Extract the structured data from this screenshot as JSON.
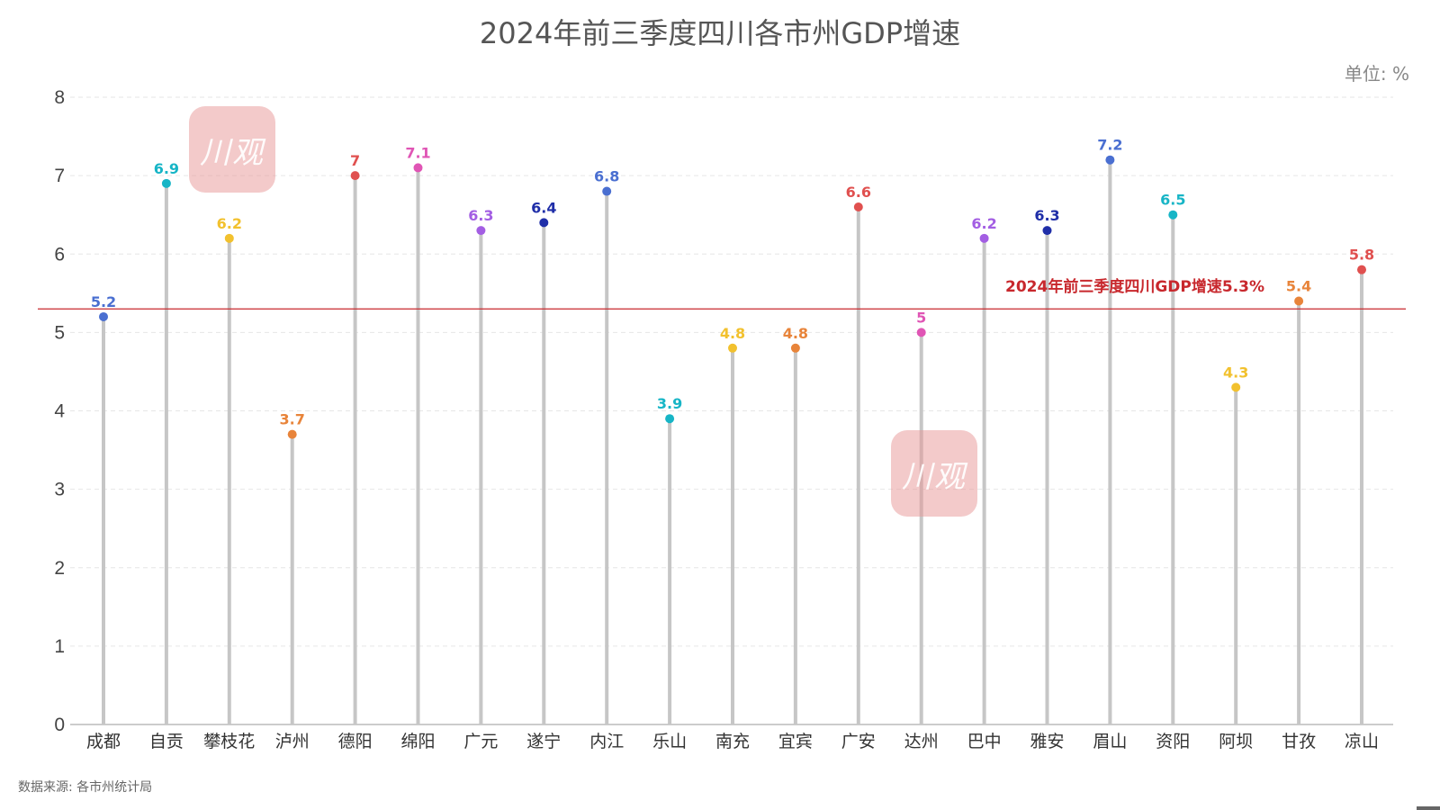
{
  "chart_data": {
    "type": "lollipop",
    "title": "2024年前三季度四川各市州GDP增速",
    "unit_label": "单位: %",
    "source": "数据来源: 各市州统计局",
    "ylim": [
      0,
      8
    ],
    "yticks": [
      "0",
      "1",
      "2",
      "3",
      "4",
      "5",
      "6",
      "7",
      "8"
    ],
    "categories": [
      "成都",
      "自贡",
      "攀枝花",
      "泸州",
      "德阳",
      "绵阳",
      "广元",
      "遂宁",
      "内江",
      "乐山",
      "南充",
      "宜宾",
      "广安",
      "达州",
      "巴中",
      "雅安",
      "眉山",
      "资阳",
      "阿坝",
      "甘孜",
      "凉山"
    ],
    "values": [
      5.2,
      6.9,
      6.2,
      3.7,
      7,
      7.1,
      6.3,
      6.4,
      6.8,
      3.9,
      4.8,
      4.8,
      6.6,
      5,
      6.2,
      6.3,
      7.2,
      6.5,
      4.3,
      5.4,
      5.8
    ],
    "value_labels": [
      "5.2",
      "6.9",
      "6.2",
      "3.7",
      "7",
      "7.1",
      "6.3",
      "6.4",
      "6.8",
      "3.9",
      "4.8",
      "4.8",
      "6.6",
      "5",
      "6.2",
      "6.3",
      "7.2",
      "6.5",
      "4.3",
      "5.4",
      "5.8"
    ],
    "point_colors": [
      "#4a6fd1",
      "#17b5c6",
      "#f2c12e",
      "#e8843a",
      "#e0504f",
      "#e055b5",
      "#a35ee3",
      "#1f2ea8",
      "#4a6fd1",
      "#17b5c6",
      "#f2c12e",
      "#e8843a",
      "#e0504f",
      "#e055b5",
      "#a35ee3",
      "#1f2ea8",
      "#4a6fd1",
      "#17b5c6",
      "#f2c12e",
      "#e8843a",
      "#e0504f"
    ],
    "stem_color": "#c6c6c6",
    "reference_line": {
      "value": 5.3,
      "label": "2024年前三季度四川GDP增速5.3%",
      "color": "#c8282d"
    }
  },
  "watermarks": [
    "川观",
    "川观"
  ]
}
